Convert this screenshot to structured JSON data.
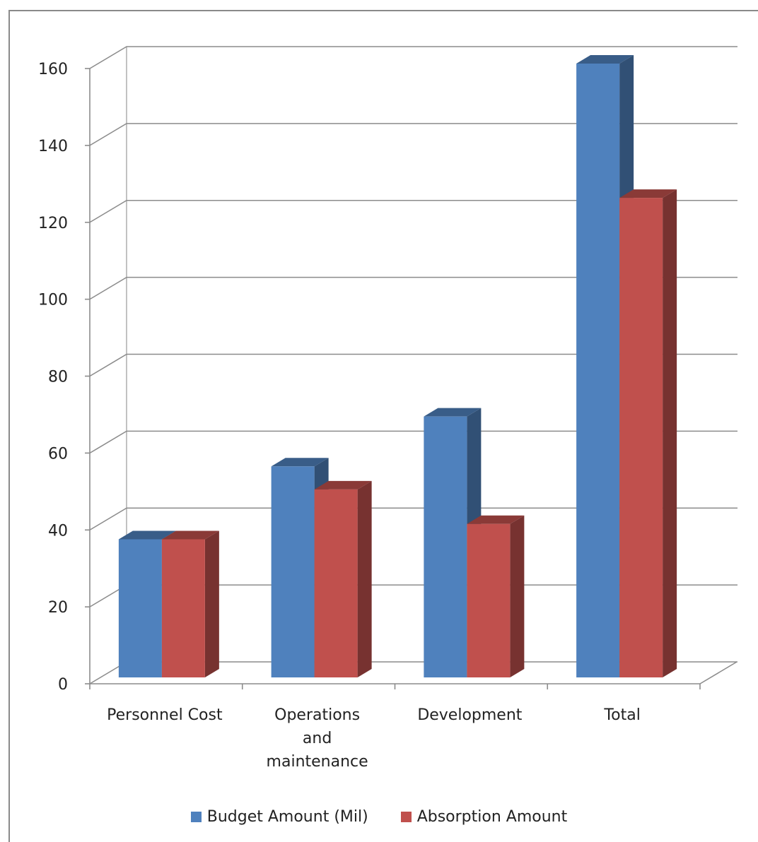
{
  "chart_data": {
    "type": "bar",
    "style": "3d-clustered-column",
    "title": "",
    "xlabel": "",
    "ylabel": "",
    "categories": [
      "Personnel Cost",
      "Operations and maintenance",
      "Development",
      "Total"
    ],
    "category_lines": [
      [
        "Personnel Cost"
      ],
      [
        "Operations",
        "and",
        "maintenance"
      ],
      [
        "Development"
      ],
      [
        "Total"
      ]
    ],
    "series": [
      {
        "name": "Budget Amount (Mil)",
        "values": [
          36,
          55,
          68,
          160
        ],
        "color": "#4F81BD"
      },
      {
        "name": "Absorption Amount",
        "values": [
          36,
          49,
          40,
          125
        ],
        "color": "#C0504D"
      }
    ],
    "ylim": [
      0,
      160
    ],
    "yticks": [
      0,
      20,
      40,
      60,
      80,
      100,
      120,
      140,
      160
    ],
    "grid": true,
    "legend_position": "bottom"
  }
}
